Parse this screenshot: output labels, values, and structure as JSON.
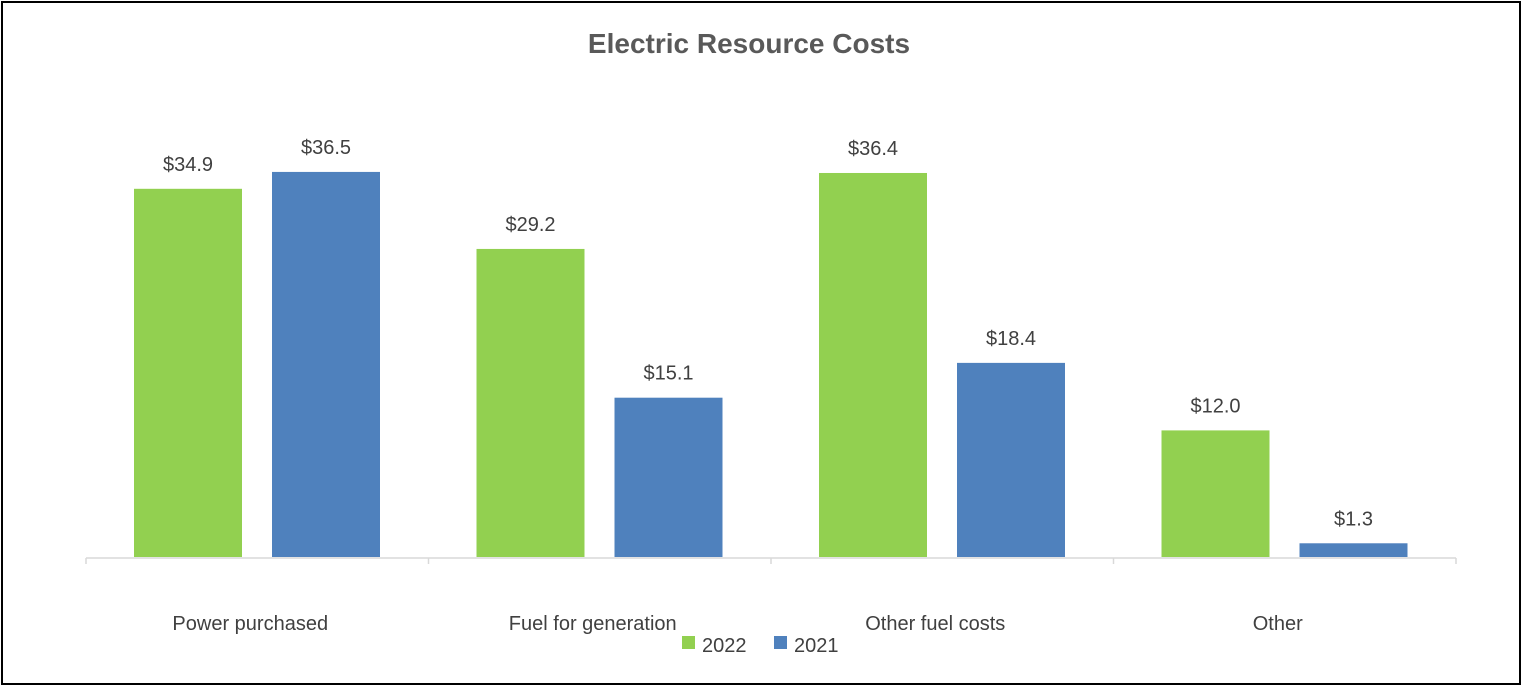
{
  "chart_data": {
    "type": "bar",
    "title": "Electric Resource Costs",
    "xlabel": "",
    "ylabel": "",
    "ylim": [
      0,
      40
    ],
    "grid": false,
    "legend_position": "bottom",
    "categories": [
      "Power purchased",
      "Fuel for generation",
      "Other fuel costs",
      "Other"
    ],
    "series": [
      {
        "name": "2022",
        "color": "#92d050",
        "values": [
          34.9,
          29.2,
          36.4,
          12.0
        ],
        "labels": [
          "$34.9",
          "$29.2",
          "$36.4",
          "$12.0"
        ]
      },
      {
        "name": "2021",
        "color": "#4f81bd",
        "values": [
          36.5,
          15.1,
          18.4,
          1.3
        ],
        "labels": [
          "$36.5",
          "$15.1",
          "$18.4",
          "$1.3"
        ]
      }
    ]
  }
}
